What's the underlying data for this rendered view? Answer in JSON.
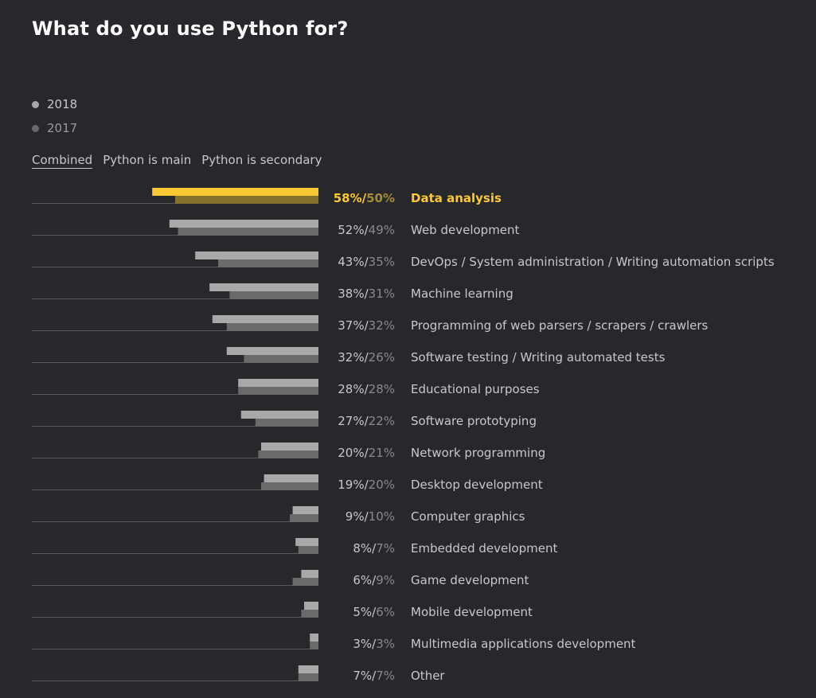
{
  "title": "What do you use Python for?",
  "legend": [
    {
      "label": "2018",
      "color": "#9a9a9a"
    },
    {
      "label": "2017",
      "color": "#5c5c5c"
    }
  ],
  "tabs": [
    {
      "label": "Combined",
      "active": true
    },
    {
      "label": "Python is main",
      "active": false
    },
    {
      "label": "Python is secondary",
      "active": false
    }
  ],
  "colors": {
    "background": "#27282c",
    "bar_2018": "#a8a8a8",
    "bar_2017": "#6a6a6a",
    "highlight_2018": "#fcc935",
    "highlight_2017": "#85712c",
    "highlight_text": "#fcc935",
    "highlight_text_2017": "#a58c3a",
    "label_text": "#c8c8c8",
    "secondary_text": "#8a8a8a",
    "baseline": "#5a5a5a"
  },
  "chart_data": {
    "type": "bar",
    "orientation": "horizontal",
    "highlighted_index": 0,
    "categories": [
      "Data analysis",
      "Web development",
      "DevOps / System administration / Writing automation scripts",
      "Machine learning",
      "Programming of web parsers / scrapers / crawlers",
      "Software testing / Writing automated tests",
      "Educational purposes",
      "Software prototyping",
      "Network programming",
      "Desktop development",
      "Computer graphics",
      "Embedded development",
      "Game development",
      "Mobile development",
      "Multimedia applications development",
      "Other"
    ],
    "series": [
      {
        "name": "2018",
        "values": [
          58,
          52,
          43,
          38,
          37,
          32,
          28,
          27,
          20,
          19,
          9,
          8,
          6,
          5,
          3,
          7
        ]
      },
      {
        "name": "2017",
        "values": [
          50,
          49,
          35,
          31,
          32,
          26,
          28,
          22,
          21,
          20,
          10,
          7,
          9,
          6,
          3,
          7
        ]
      }
    ],
    "value_labels": [
      [
        "58%",
        "50%"
      ],
      [
        "52%",
        "49%"
      ],
      [
        "43%",
        "35%"
      ],
      [
        "38%",
        "31%"
      ],
      [
        "37%",
        "32%"
      ],
      [
        "32%",
        "26%"
      ],
      [
        "28%",
        "28%"
      ],
      [
        "27%",
        "22%"
      ],
      [
        "20%",
        "21%"
      ],
      [
        "19%",
        "20%"
      ],
      [
        "9%",
        "10%"
      ],
      [
        "8%",
        "7%"
      ],
      [
        "6%",
        "9%"
      ],
      [
        "5%",
        "6%"
      ],
      [
        "3%",
        "3%"
      ],
      [
        "7%",
        "7%"
      ]
    ],
    "xlim": [
      0,
      100
    ]
  }
}
